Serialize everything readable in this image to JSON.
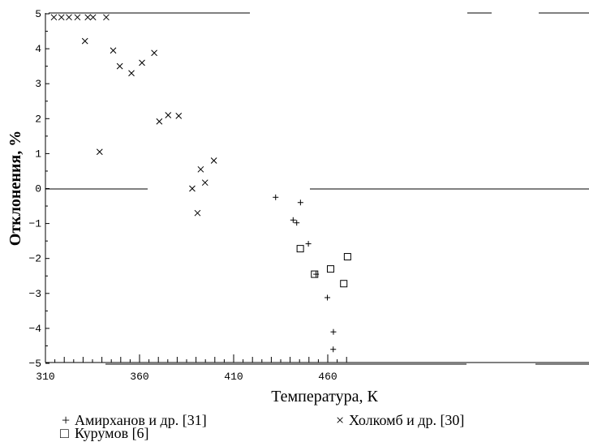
{
  "chart_data": {
    "type": "scatter",
    "xlabel": "Температура, К",
    "ylabel": "Отклонения, %",
    "xlim": [
      310,
      475
    ],
    "ylim": [
      -5,
      5
    ],
    "x_ticks": [
      "310",
      "360",
      "410",
      "460"
    ],
    "y_ticks": [
      "5",
      "4",
      "3",
      "2",
      "1",
      "0",
      "−1",
      "−2",
      "−3",
      "−4",
      "−5"
    ],
    "grid": false,
    "legend_position": "bottom",
    "series": [
      {
        "name": "Амирханов и др. [31]",
        "marker": "plus",
        "points": [
          {
            "x": 432.3,
            "y": -0.25
          },
          {
            "x": 441.6,
            "y": -0.9
          },
          {
            "x": 443.5,
            "y": -0.98
          },
          {
            "x": 445.5,
            "y": -0.4
          },
          {
            "x": 449.7,
            "y": -1.58
          },
          {
            "x": 453.8,
            "y": -2.45
          },
          {
            "x": 459.8,
            "y": -3.12
          },
          {
            "x": 463.0,
            "y": -4.1
          },
          {
            "x": 462.9,
            "y": -4.6
          }
        ]
      },
      {
        "name": "Холкомб и др. [30]",
        "marker": "x",
        "points": [
          {
            "x": 314.5,
            "y": 4.9
          },
          {
            "x": 318.5,
            "y": 4.9
          },
          {
            "x": 322.5,
            "y": 4.9
          },
          {
            "x": 327.0,
            "y": 4.9
          },
          {
            "x": 331.0,
            "y": 4.22
          },
          {
            "x": 332.5,
            "y": 4.9
          },
          {
            "x": 335.3,
            "y": 4.9
          },
          {
            "x": 338.8,
            "y": 1.05
          },
          {
            "x": 342.3,
            "y": 4.9
          },
          {
            "x": 346.0,
            "y": 3.95
          },
          {
            "x": 349.5,
            "y": 3.5
          },
          {
            "x": 355.7,
            "y": 3.3
          },
          {
            "x": 361.3,
            "y": 3.6
          },
          {
            "x": 367.8,
            "y": 3.88
          },
          {
            "x": 370.5,
            "y": 1.92
          },
          {
            "x": 375.2,
            "y": 2.1
          },
          {
            "x": 380.8,
            "y": 2.08
          },
          {
            "x": 388.0,
            "y": 0.0
          },
          {
            "x": 390.8,
            "y": -0.7
          },
          {
            "x": 392.5,
            "y": 0.55
          },
          {
            "x": 394.8,
            "y": 0.17
          },
          {
            "x": 399.5,
            "y": 0.8
          }
        ]
      },
      {
        "name": "Курумов [6]",
        "marker": "square",
        "points": [
          {
            "x": 445.4,
            "y": -1.72
          },
          {
            "x": 453.0,
            "y": -2.45
          },
          {
            "x": 461.5,
            "y": -2.3
          },
          {
            "x": 468.5,
            "y": -2.72
          },
          {
            "x": 470.5,
            "y": -1.95
          }
        ]
      }
    ],
    "legend_entries": [
      {
        "symbol": "+",
        "label": "Амирханов и др. [31]"
      },
      {
        "symbol": "×",
        "label": "Холкомб и др. [30]"
      },
      {
        "symbol": "□",
        "label": "Курумов [6]"
      }
    ]
  }
}
